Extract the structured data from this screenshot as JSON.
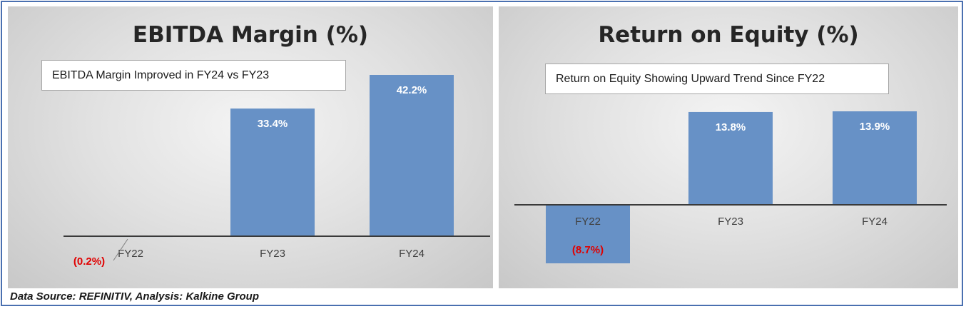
{
  "chart_data": [
    {
      "type": "bar",
      "title": "EBITDA Margin (%)",
      "annotation": "EBITDA Margin Improved in FY24 vs FY23",
      "categories": [
        "FY22",
        "FY23",
        "FY24"
      ],
      "values": [
        -0.2,
        33.4,
        42.2
      ],
      "data_labels": [
        "(0.2%)",
        "33.4%",
        "42.2%"
      ],
      "bar_color": "#6791c6",
      "negative_label_color": "#e00000",
      "positive_label_color": "#ffffff",
      "ylim": [
        -7,
        42.2
      ],
      "grid": false
    },
    {
      "type": "bar",
      "title": "Return on Equity (%)",
      "annotation": "Return on Equity Showing Upward Trend Since FY22",
      "categories": [
        "FY22",
        "FY23",
        "FY24"
      ],
      "values": [
        -8.7,
        13.8,
        13.9
      ],
      "data_labels": [
        "(8.7%)",
        "13.8%",
        "13.9%"
      ],
      "bar_color": "#6791c6",
      "negative_label_color": "#e00000",
      "positive_label_color": "#ffffff",
      "ylim": [
        -8.7,
        13.9
      ],
      "grid": false
    }
  ],
  "footer": "Data Source: REFINITIV, Analysis: Kalkine Group"
}
